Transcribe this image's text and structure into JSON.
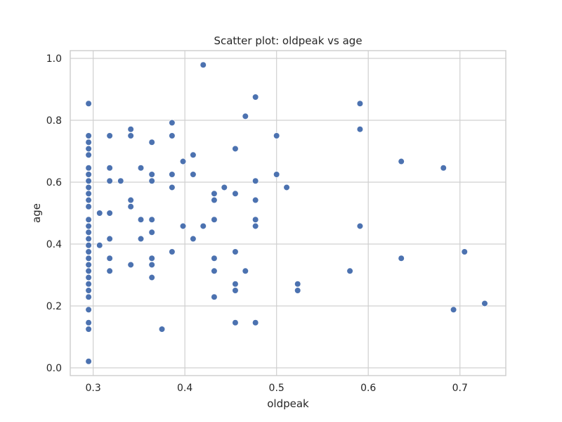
{
  "chart_data": {
    "type": "scatter",
    "title": "Scatter plot: oldpeak vs age",
    "xlabel": "oldpeak",
    "ylabel": "age",
    "xlim": [
      0.275,
      0.75
    ],
    "ylim": [
      -0.025,
      1.025
    ],
    "xticks": [
      "0.3",
      "0.4",
      "0.5",
      "0.6",
      "0.7"
    ],
    "yticks": [
      "0.0",
      "0.2",
      "0.4",
      "0.6",
      "0.8",
      "1.0"
    ],
    "grid": true,
    "color": "#4c72b0",
    "points": [
      [
        0.295,
        0.021
      ],
      [
        0.295,
        0.125
      ],
      [
        0.295,
        0.146
      ],
      [
        0.295,
        0.188
      ],
      [
        0.295,
        0.229
      ],
      [
        0.295,
        0.25
      ],
      [
        0.295,
        0.271
      ],
      [
        0.295,
        0.292
      ],
      [
        0.295,
        0.313
      ],
      [
        0.295,
        0.333
      ],
      [
        0.295,
        0.354
      ],
      [
        0.295,
        0.375
      ],
      [
        0.295,
        0.396
      ],
      [
        0.295,
        0.417
      ],
      [
        0.295,
        0.438
      ],
      [
        0.295,
        0.458
      ],
      [
        0.295,
        0.479
      ],
      [
        0.295,
        0.521
      ],
      [
        0.295,
        0.542
      ],
      [
        0.295,
        0.563
      ],
      [
        0.295,
        0.583
      ],
      [
        0.295,
        0.604
      ],
      [
        0.295,
        0.625
      ],
      [
        0.295,
        0.646
      ],
      [
        0.295,
        0.688
      ],
      [
        0.295,
        0.708
      ],
      [
        0.295,
        0.729
      ],
      [
        0.295,
        0.75
      ],
      [
        0.295,
        0.854
      ],
      [
        0.307,
        0.5
      ],
      [
        0.307,
        0.396
      ],
      [
        0.318,
        0.75
      ],
      [
        0.318,
        0.646
      ],
      [
        0.318,
        0.604
      ],
      [
        0.318,
        0.5
      ],
      [
        0.318,
        0.417
      ],
      [
        0.318,
        0.354
      ],
      [
        0.318,
        0.313
      ],
      [
        0.33,
        0.604
      ],
      [
        0.341,
        0.771
      ],
      [
        0.341,
        0.75
      ],
      [
        0.341,
        0.542
      ],
      [
        0.341,
        0.521
      ],
      [
        0.341,
        0.333
      ],
      [
        0.352,
        0.646
      ],
      [
        0.352,
        0.479
      ],
      [
        0.352,
        0.417
      ],
      [
        0.364,
        0.729
      ],
      [
        0.364,
        0.625
      ],
      [
        0.364,
        0.604
      ],
      [
        0.364,
        0.479
      ],
      [
        0.364,
        0.438
      ],
      [
        0.364,
        0.354
      ],
      [
        0.364,
        0.333
      ],
      [
        0.364,
        0.292
      ],
      [
        0.375,
        0.125
      ],
      [
        0.386,
        0.792
      ],
      [
        0.386,
        0.75
      ],
      [
        0.386,
        0.625
      ],
      [
        0.386,
        0.583
      ],
      [
        0.386,
        0.375
      ],
      [
        0.398,
        0.667
      ],
      [
        0.398,
        0.458
      ],
      [
        0.409,
        0.688
      ],
      [
        0.409,
        0.625
      ],
      [
        0.409,
        0.417
      ],
      [
        0.42,
        0.979
      ],
      [
        0.42,
        0.458
      ],
      [
        0.432,
        0.563
      ],
      [
        0.432,
        0.542
      ],
      [
        0.432,
        0.479
      ],
      [
        0.432,
        0.354
      ],
      [
        0.432,
        0.313
      ],
      [
        0.432,
        0.229
      ],
      [
        0.443,
        0.583
      ],
      [
        0.455,
        0.708
      ],
      [
        0.455,
        0.563
      ],
      [
        0.455,
        0.375
      ],
      [
        0.455,
        0.271
      ],
      [
        0.455,
        0.25
      ],
      [
        0.455,
        0.146
      ],
      [
        0.466,
        0.813
      ],
      [
        0.466,
        0.313
      ],
      [
        0.477,
        0.875
      ],
      [
        0.477,
        0.604
      ],
      [
        0.477,
        0.542
      ],
      [
        0.477,
        0.479
      ],
      [
        0.477,
        0.458
      ],
      [
        0.477,
        0.146
      ],
      [
        0.5,
        0.75
      ],
      [
        0.5,
        0.625
      ],
      [
        0.511,
        0.583
      ],
      [
        0.523,
        0.271
      ],
      [
        0.523,
        0.25
      ],
      [
        0.58,
        0.313
      ],
      [
        0.591,
        0.854
      ],
      [
        0.591,
        0.771
      ],
      [
        0.591,
        0.458
      ],
      [
        0.636,
        0.667
      ],
      [
        0.636,
        0.354
      ],
      [
        0.682,
        0.646
      ],
      [
        0.693,
        0.188
      ],
      [
        0.705,
        0.375
      ],
      [
        0.727,
        0.208
      ]
    ]
  }
}
